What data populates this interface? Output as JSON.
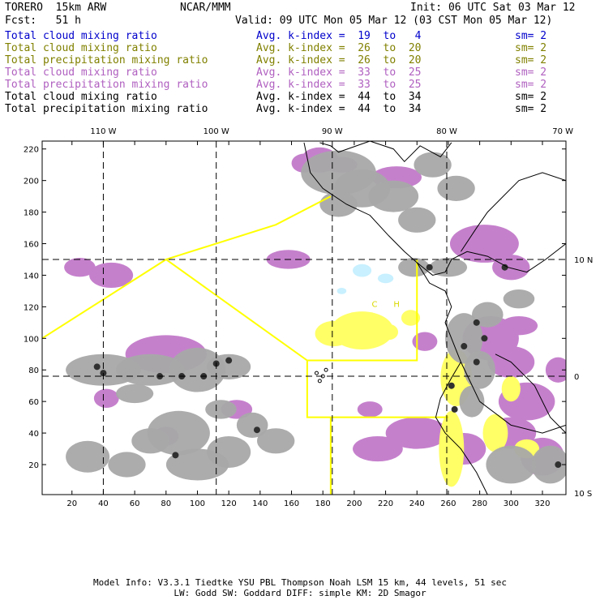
{
  "header": {
    "model": "TORERO  15km ARW",
    "center": "NCAR/MMM",
    "init": "Init: 06 UTC Sat 03 Mar 12",
    "fcst": "Fcst:   51 h",
    "valid": "Valid: 09 UTC Mon 05 Mar 12 (03 CST Mon 05 Mar 12)"
  },
  "legend": [
    {
      "field": "Total cloud mixing ratio",
      "kindex": "Avg. k-index =  19  to   4",
      "sm": "sm= 2",
      "color": "#0000cc"
    },
    {
      "field": "Total cloud mixing ratio",
      "kindex": "Avg. k-index =  26  to  20",
      "sm": "sm= 2",
      "color": "#808000"
    },
    {
      "field": "Total precipitation mixing ratio",
      "kindex": "Avg. k-index =  26  to  20",
      "sm": "sm= 2",
      "color": "#808000"
    },
    {
      "field": "Total cloud mixing ratio",
      "kindex": "Avg. k-index =  33  to  25",
      "sm": "sm= 2",
      "color": "#b060c0"
    },
    {
      "field": "Total precipitation mixing ratio",
      "kindex": "Avg. k-index =  33  to  25",
      "sm": "sm= 2",
      "color": "#b060c0"
    },
    {
      "field": "Total cloud mixing ratio",
      "kindex": "Avg. k-index =  44  to  34",
      "sm": "sm= 2",
      "color": "#000000"
    },
    {
      "field": "Total precipitation mixing ratio",
      "kindex": "Avg. k-index =  44  to  34",
      "sm": "sm= 2",
      "color": "#000000"
    }
  ],
  "axes": {
    "top_lon": [
      {
        "label": "110 W",
        "x": 40
      },
      {
        "label": "100 W",
        "x": 112
      },
      {
        "label": "90 W",
        "x": 186
      },
      {
        "label": "80 W",
        "x": 259
      },
      {
        "label": "70 W",
        "x": 333
      }
    ],
    "right_lat": [
      {
        "label": "10 N",
        "y": 150
      },
      {
        "label": "0",
        "y": 76
      },
      {
        "label": "10 S",
        "y": 2
      }
    ],
    "x_ticks": [
      20,
      40,
      60,
      80,
      100,
      120,
      140,
      160,
      180,
      200,
      220,
      240,
      260,
      280,
      300,
      320
    ],
    "y_ticks": [
      20,
      40,
      60,
      80,
      100,
      120,
      140,
      160,
      180,
      200,
      220
    ],
    "grid_x": [
      40,
      112,
      186,
      259
    ],
    "grid_y": [
      150,
      76
    ],
    "xlim": [
      1,
      335
    ],
    "ylim": [
      1,
      225
    ]
  },
  "map_labels": [
    {
      "text": "C",
      "x": 213,
      "y": 120
    },
    {
      "text": "H",
      "x": 227,
      "y": 120
    }
  ],
  "colors": {
    "pink": "#c580cc",
    "yellow": "#ffff66",
    "gray": "#a8a8a8",
    "dark": "#303030",
    "cyan": "#c8f0ff",
    "boundary": "#ffff00"
  },
  "footer": {
    "line1": "Model Info: V3.3.1   Tiedtke YSU PBL  Thompson    Noah LSM  15 km,   44 levels,   51 sec",
    "line2": "LW: Godd SW: Goddard DIFF: simple KM: 2D Smagor"
  }
}
